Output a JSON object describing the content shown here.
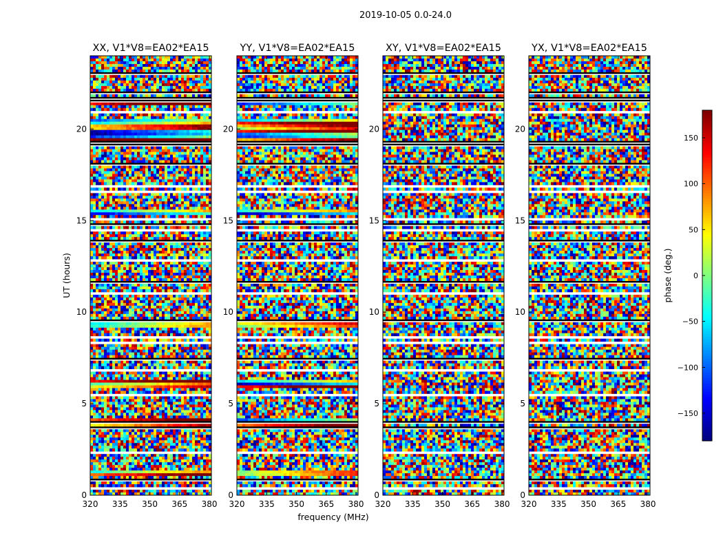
{
  "figure": {
    "suptitle": "2019-10-05 0.0-24.0",
    "xlabel": "frequency (MHz)",
    "ylabel": "UT (hours)",
    "colorbar_label": "phase (deg.)"
  },
  "chart_data": {
    "type": "heatmap",
    "title": "2019-10-05 0.0-24.0",
    "xlabel": "frequency (MHz)",
    "ylabel": "UT (hours)",
    "xlim": [
      320,
      381
    ],
    "ylim": [
      0,
      24
    ],
    "xticks": [
      320,
      335,
      350,
      365,
      380
    ],
    "yticks": [
      0,
      5,
      10,
      15,
      20
    ],
    "colormap": "jet",
    "colorbar": {
      "label": "phase (deg.)",
      "range": [
        -180,
        180
      ],
      "ticks": [
        -150,
        -100,
        -50,
        0,
        50,
        100,
        150
      ],
      "tick_labels": [
        "−150",
        "−100",
        "−50",
        "0",
        "50",
        "100",
        "150"
      ]
    },
    "panels": [
      {
        "title": "XX, V1*V8=EA02*EA15",
        "polarization": "XX"
      },
      {
        "title": "YY, V1*V8=EA02*EA15",
        "polarization": "YY"
      },
      {
        "title": "XY, V1*V8=EA02*EA15",
        "polarization": "XY"
      },
      {
        "title": "YX, V1*V8=EA02*EA15",
        "polarization": "YX"
      }
    ]
  }
}
